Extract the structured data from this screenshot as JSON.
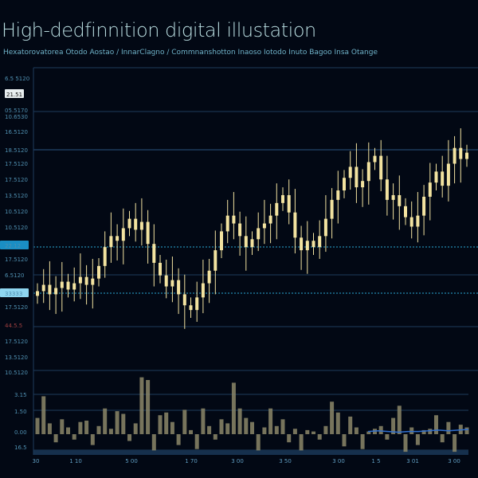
{
  "title": "High-dedfinnition digital illustation",
  "subtitle": "Hexatorovatorea Otodo Aostao  /  InnarClagno  /  Commnanshotton Inaoso Iotodo Inuto  Bagoo  Insa Otange",
  "colors": {
    "background": "#020814",
    "candle": "#f3e3a0",
    "grid": "#1d3b5c",
    "accent": "#2aa9d6",
    "volume": "#8c8768",
    "volume_line": "#2f6fd0"
  },
  "chart_data": {
    "type": "candlestick",
    "title": "High-dedfinnition digital illustation",
    "grid": true,
    "ylim": [
      0,
      20
    ],
    "y_tick_labels": [
      "6.5 5120",
      "21.51",
      "05.5170",
      "10.6530",
      "16.5120",
      "18.5120",
      "17.5120",
      "17.5120",
      "13.5120",
      "10.5120",
      "10.5120",
      "22.12",
      "17.5120",
      "6.5120",
      "33333",
      "17.5120",
      "44.5.5",
      "17.5120",
      "13.5120",
      "10.5120"
    ],
    "x_tick_labels": [
      "30",
      "1 10",
      "5 00",
      "1 70",
      "3 00",
      "3 50",
      "3 00",
      "1 5",
      "3 01",
      "3 00"
    ],
    "closes": [
      5.8,
      6.2,
      5.6,
      6.0,
      6.4,
      5.9,
      6.3,
      6.7,
      6.2,
      6.6,
      7.4,
      8.6,
      9.3,
      9.0,
      9.8,
      10.4,
      9.7,
      10.2,
      8.8,
      7.6,
      6.8,
      6.1,
      6.5,
      5.6,
      4.9,
      4.6,
      5.4,
      6.3,
      7.1,
      8.4,
      9.6,
      10.6,
      10.1,
      9.3,
      8.6,
      9.1,
      9.8,
      10.1,
      10.6,
      11.4,
      11.9,
      10.8,
      9.2,
      8.4,
      9.0,
      8.6,
      9.3,
      10.4,
      11.6,
      12.2,
      13.0,
      13.7,
      12.4,
      12.8,
      14.0,
      14.4,
      12.9,
      11.6,
      11.9,
      11.2,
      10.5,
      9.9,
      10.6,
      11.8,
      12.7,
      13.4,
      12.5,
      13.9,
      14.9,
      14.2,
      14.6
    ],
    "volume": {
      "tick_labels": [
        "3.15",
        "1.50",
        "0.00",
        "16.5"
      ],
      "ylim": [
        -1.5,
        4
      ],
      "values": [
        1.2,
        2.8,
        0.8,
        -0.6,
        1.1,
        0.5,
        -0.4,
        0.9,
        1.0,
        -0.8,
        0.6,
        1.9,
        0.4,
        1.7,
        1.5,
        -0.5,
        0.8,
        4.2,
        4.0,
        -1.2,
        1.4,
        1.6,
        0.9,
        -0.8,
        1.8,
        0.3,
        -1.1,
        1.9,
        0.6,
        -0.4,
        1.1,
        0.8,
        3.8,
        1.9,
        1.2,
        0.9,
        -1.2,
        0.5,
        1.9,
        0.6,
        1.1,
        -0.6,
        0.4,
        -1.2,
        0.3,
        0.2,
        -0.4,
        0.6,
        2.4,
        1.6,
        -0.9,
        1.3,
        0.5,
        -1.1,
        0.2,
        0.4,
        0.6,
        -0.4,
        1.2,
        2.1,
        -1.3,
        0.5,
        -0.8,
        0.3,
        0.4,
        1.4,
        -0.6,
        0.9,
        -1.3,
        0.7,
        0.5
      ],
      "line": [
        0.2,
        0.25,
        0.2,
        0.15,
        0.2,
        0.2,
        0.25,
        0.3,
        0.25,
        0.3,
        0.35
      ]
    }
  }
}
